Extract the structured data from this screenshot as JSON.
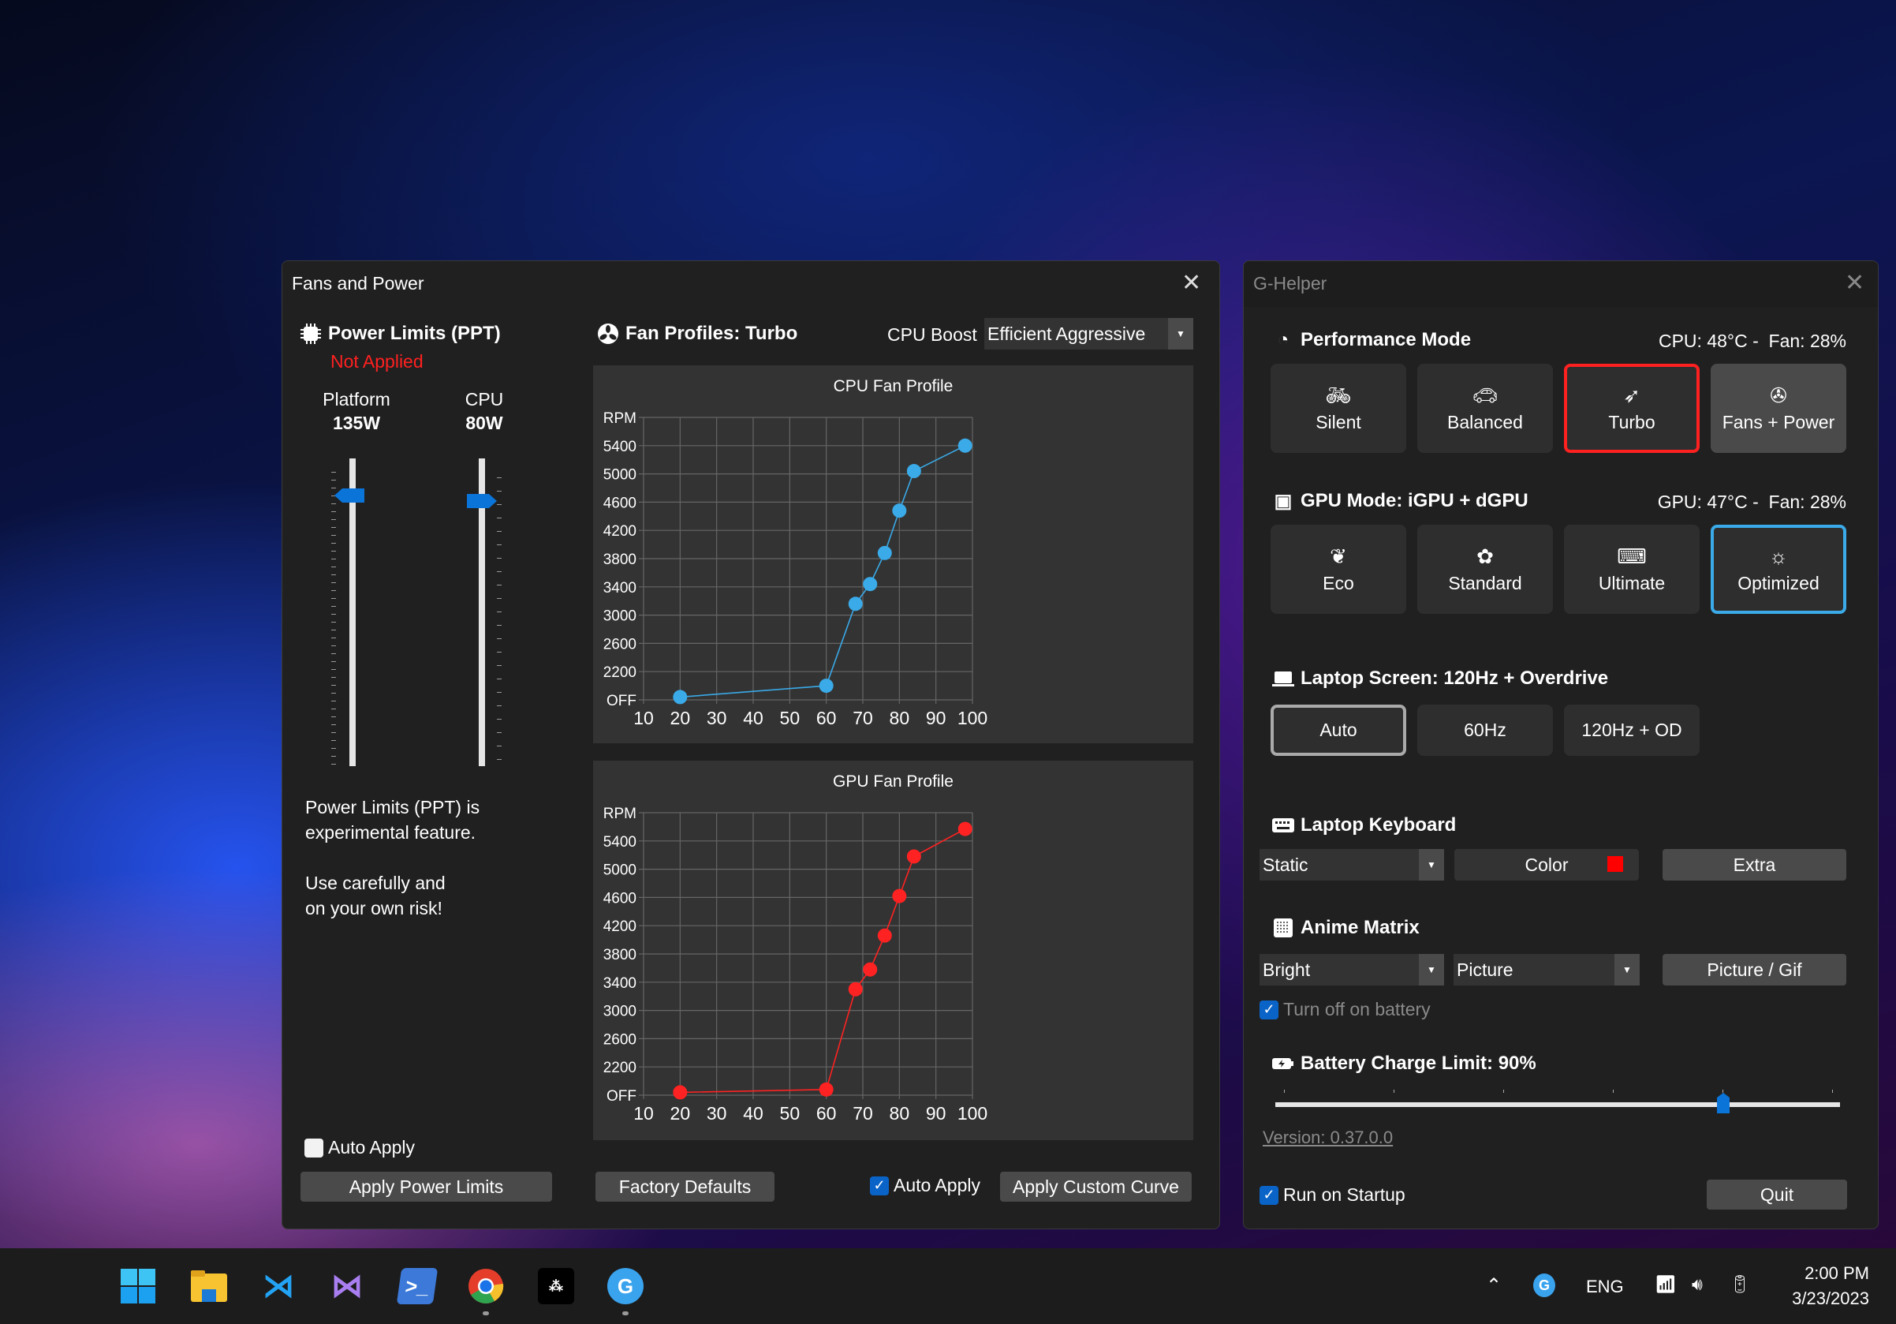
{
  "fans_window": {
    "title": "Fans and Power",
    "power_limits": {
      "title": "Power Limits (PPT)",
      "status": "Not Applied",
      "platform": {
        "label": "Platform",
        "value": "135W",
        "level": 0.87
      },
      "cpu": {
        "label": "CPU",
        "value": "80W",
        "level": 0.85
      },
      "note_line1": "Power Limits (PPT) is",
      "note_line2": "experimental feature.",
      "note_line3": "Use carefully and",
      "note_line4": "on your own risk!",
      "auto_apply": {
        "label": "Auto Apply",
        "checked": false
      },
      "apply_button": "Apply Power Limits"
    },
    "fan_profiles": {
      "title": "Fan Profiles: Turbo",
      "cpu_boost_label": "CPU Boost",
      "cpu_boost_value": "Efficient Aggressive"
    },
    "factory_defaults": "Factory Defaults",
    "auto_apply": {
      "label": "Auto Apply",
      "checked": true
    },
    "apply_curve": "Apply Custom Curve"
  },
  "chart_data": [
    {
      "type": "line",
      "title": "CPU Fan Profile",
      "color": "#3aaae8",
      "x": [
        20,
        60,
        68,
        72,
        76,
        80,
        84,
        98
      ],
      "y": [
        1840,
        2000,
        3160,
        3440,
        3880,
        4480,
        5040,
        5400
      ],
      "xlim": [
        10,
        100
      ],
      "ylim": [
        1800,
        5800
      ],
      "xticks": [
        "10",
        "20",
        "30",
        "40",
        "50",
        "60",
        "70",
        "80",
        "90",
        "100"
      ],
      "yticks": [
        "OFF",
        "2200",
        "2600",
        "3000",
        "3400",
        "3800",
        "4200",
        "4600",
        "5000",
        "5400",
        "RPM"
      ],
      "grid": true
    },
    {
      "type": "line",
      "title": "GPU Fan Profile",
      "color": "#ff2222",
      "x": [
        20,
        60,
        68,
        72,
        76,
        80,
        84,
        98
      ],
      "y": [
        1840,
        1880,
        3300,
        3580,
        4060,
        4620,
        5180,
        5570
      ],
      "xlim": [
        10,
        100
      ],
      "ylim": [
        1800,
        5800
      ],
      "xticks": [
        "10",
        "20",
        "30",
        "40",
        "50",
        "60",
        "70",
        "80",
        "90",
        "100"
      ],
      "yticks": [
        "OFF",
        "2200",
        "2600",
        "3000",
        "3400",
        "3800",
        "4200",
        "4600",
        "5000",
        "5400",
        "RPM"
      ],
      "grid": true
    }
  ],
  "ghelper": {
    "title": "G-Helper",
    "performance": {
      "title": "Performance Mode",
      "status": "CPU: 48°C -  Fan: 28%",
      "modes": [
        {
          "label": "Silent",
          "icon": "bicycle-icon"
        },
        {
          "label": "Balanced",
          "icon": "car-icon"
        },
        {
          "label": "Turbo",
          "icon": "rocket-icon",
          "selected": true
        },
        {
          "label": "Fans + Power",
          "icon": "fan-icon"
        }
      ],
      "selected_color": "#ff2020"
    },
    "gpu": {
      "title": "GPU Mode: iGPU + dGPU",
      "status": "GPU: 47°C -  Fan: 28%",
      "modes": [
        {
          "label": "Eco",
          "icon": "leaf-icon"
        },
        {
          "label": "Standard",
          "icon": "flower-icon"
        },
        {
          "label": "Ultimate",
          "icon": "gamepad-icon"
        },
        {
          "label": "Optimized",
          "icon": "bulb-gear-icon",
          "selected": true
        }
      ],
      "selected_color": "#3aaae8"
    },
    "screen": {
      "title": "Laptop Screen: 120Hz + Overdrive",
      "options": [
        "Auto",
        "60Hz",
        "120Hz + OD"
      ],
      "selected": "Auto"
    },
    "keyboard": {
      "title": "Laptop Keyboard",
      "mode": "Static",
      "color_label": "Color",
      "color": "#ff0000",
      "extra": "Extra"
    },
    "anime": {
      "title": "Anime Matrix",
      "brightness": "Bright",
      "mode": "Picture",
      "picture_button": "Picture / Gif",
      "battery_off": {
        "label": "Turn off on battery",
        "checked": true
      }
    },
    "battery": {
      "title": "Battery Charge Limit: 90%",
      "value": 90
    },
    "version": "Version: 0.37.0.0",
    "startup": {
      "label": "Run on Startup",
      "checked": true
    },
    "quit": "Quit"
  },
  "taskbar": {
    "apps": [
      "start-icon",
      "file-explorer-icon",
      "vscode-icon",
      "visual-studio-icon",
      "powershell-icon",
      "chrome-icon",
      "tidal-icon",
      "g-helper-icon"
    ],
    "tray": {
      "lang": "ENG",
      "time": "2:00 PM",
      "date": "3/23/2023"
    }
  }
}
